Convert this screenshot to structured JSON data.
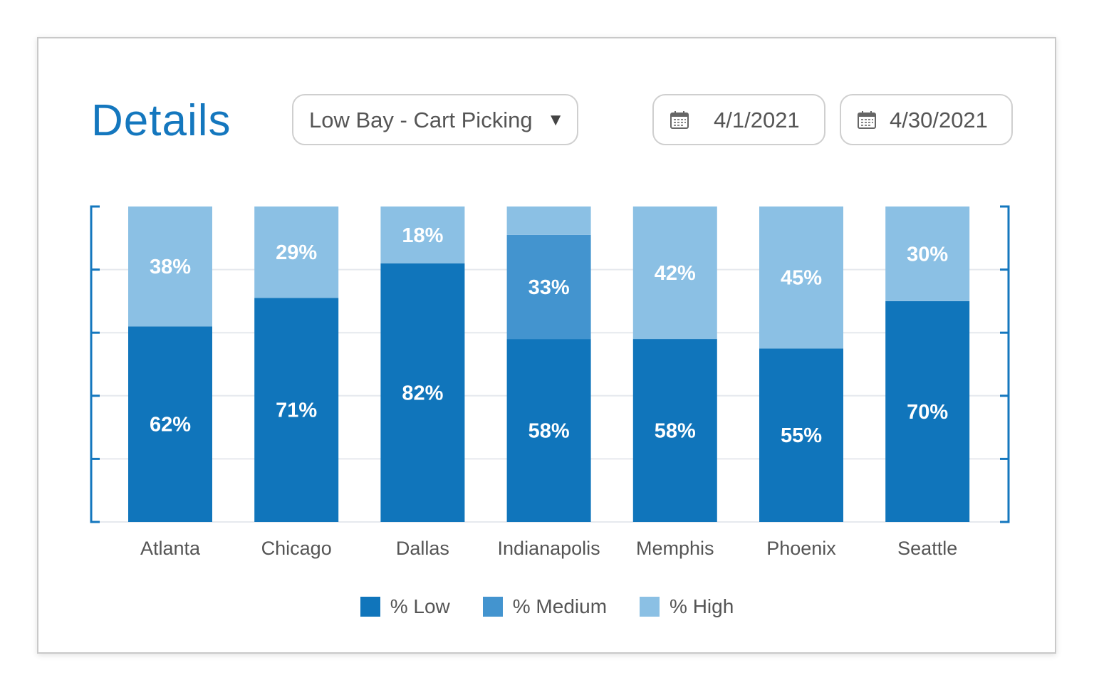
{
  "header": {
    "title": "Details",
    "dropdown_value": "Low Bay - Cart Picking",
    "start_date": "4/1/2021",
    "end_date": "4/30/2021",
    "icons": {
      "dropdown": "caret-down-icon",
      "date": "calendar-icon"
    }
  },
  "chart_data": {
    "type": "bar",
    "stacked": true,
    "categories": [
      "Atlanta",
      "Chicago",
      "Dallas",
      "Indianapolis",
      "Memphis",
      "Phoenix",
      "Seattle"
    ],
    "series": [
      {
        "name": "% Low",
        "color": "#1075bb",
        "values": [
          62,
          71,
          82,
          58,
          58,
          55,
          70
        ],
        "labels": [
          "62%",
          "71%",
          "82%",
          "58%",
          "58%",
          "55%",
          "70%"
        ]
      },
      {
        "name": "% Medium",
        "color": "#4394cf",
        "values": [
          0,
          0,
          0,
          33,
          0,
          0,
          0
        ],
        "labels": [
          "",
          "",
          "",
          "33%",
          "",
          "",
          ""
        ]
      },
      {
        "name": "% High",
        "color": "#8bc0e4",
        "values": [
          38,
          29,
          18,
          9,
          42,
          45,
          30
        ],
        "labels": [
          "38%",
          "29%",
          "18%",
          "",
          "42%",
          "45%",
          "30%"
        ]
      }
    ],
    "ylim": [
      0,
      100
    ],
    "grid": true,
    "legend": "bottom"
  }
}
